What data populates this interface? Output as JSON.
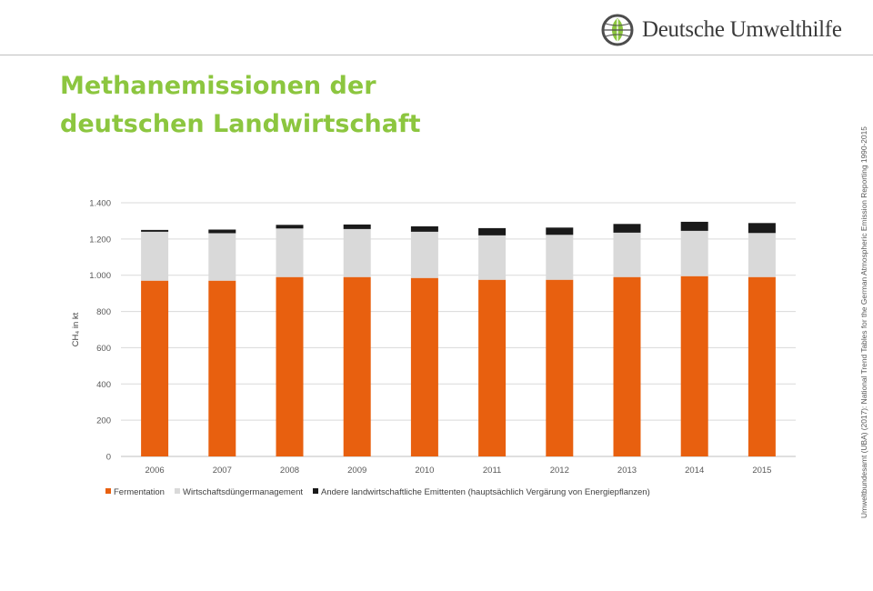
{
  "header": {
    "logo_text": "Deutsche Umwelthilfe",
    "logo_icon": "globe-leaf-icon",
    "brand_color": "#8cc63f"
  },
  "title": {
    "line1": "Methanemissionen der",
    "line2": "deutschen Landwirtschaft"
  },
  "source_note": "Umweltbundesamt (UBA) (2017): National Trend Tables for the German Atmospheric Emission Reporting 1990-2015",
  "chart_data": {
    "type": "bar",
    "stacked": true,
    "categories": [
      "2006",
      "2007",
      "2008",
      "2009",
      "2010",
      "2011",
      "2012",
      "2013",
      "2014",
      "2015"
    ],
    "series": [
      {
        "name": "Fermentation",
        "color": "#e8600f",
        "values": [
          970,
          970,
          990,
          990,
          985,
          975,
          975,
          990,
          995,
          990
        ]
      },
      {
        "name": "Wirtschaftsdüngermanagement",
        "color": "#d9d9d9",
        "values": [
          270,
          262,
          268,
          265,
          255,
          245,
          248,
          245,
          250,
          243
        ]
      },
      {
        "name": "Andere landwirtschaftliche Emittenten (hauptsächlich Vergärung von Energiepflanzen)",
        "color": "#1a1a1a",
        "values": [
          10,
          20,
          20,
          25,
          30,
          40,
          40,
          48,
          50,
          55
        ]
      }
    ],
    "ylabel": "CH₄ in kt",
    "ylim": [
      0,
      1400
    ],
    "yticks": [
      0,
      200,
      400,
      600,
      800,
      1000,
      1200,
      1400
    ],
    "ytick_labels": [
      "0",
      "200",
      "400",
      "600",
      "800",
      "1.000",
      "1.200",
      "1.400"
    ],
    "grid": true,
    "legend_position": "bottom"
  }
}
